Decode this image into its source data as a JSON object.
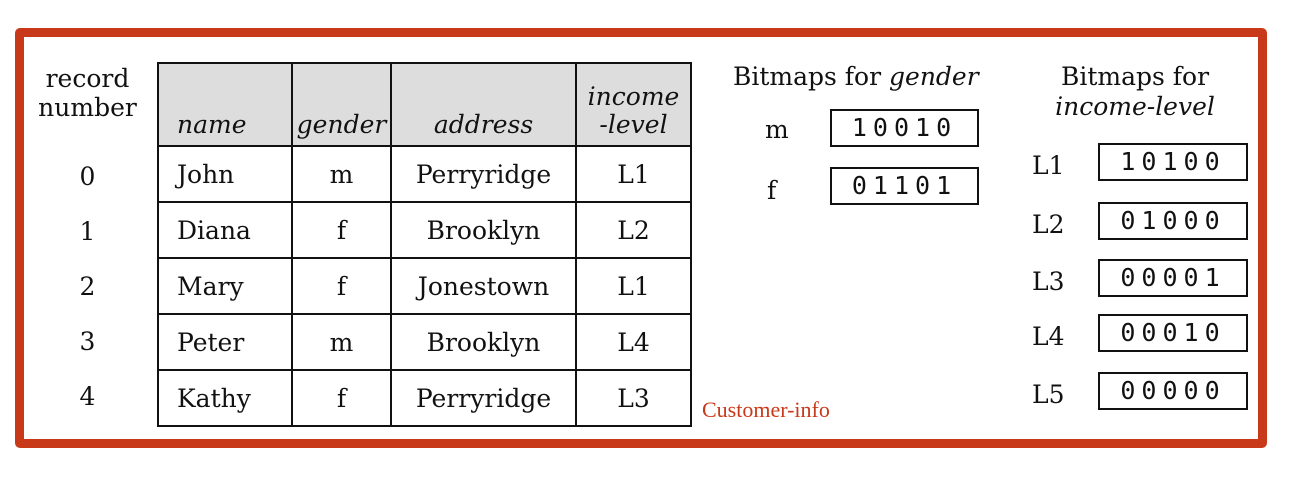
{
  "record_number_header": [
    "record",
    "number"
  ],
  "table": {
    "headers": {
      "name": "name",
      "gender": "gender",
      "address": "address",
      "income_level": [
        "income",
        "-level"
      ]
    },
    "rows": [
      {
        "num": "0",
        "name": "John",
        "gender": "m",
        "address": "Perryridge",
        "income": "L1"
      },
      {
        "num": "1",
        "name": "Diana",
        "gender": "f",
        "address": "Brooklyn",
        "income": "L2"
      },
      {
        "num": "2",
        "name": "Mary",
        "gender": "f",
        "address": "Jonestown",
        "income": "L1"
      },
      {
        "num": "3",
        "name": "Peter",
        "gender": "m",
        "address": "Brooklyn",
        "income": "L4"
      },
      {
        "num": "4",
        "name": "Kathy",
        "gender": "f",
        "address": "Perryridge",
        "income": "L3"
      }
    ]
  },
  "table_label": "Customer-info",
  "gender_bitmaps": {
    "title_plain": "Bitmaps for ",
    "title_italic": "gender",
    "items": [
      {
        "key": "m",
        "bits": "10010"
      },
      {
        "key": "f",
        "bits": "01101"
      }
    ]
  },
  "income_bitmaps": {
    "title_line1": "Bitmaps for",
    "title_line2": "income-level",
    "items": [
      {
        "key": "L1",
        "bits": "10100"
      },
      {
        "key": "L2",
        "bits": "01000"
      },
      {
        "key": "L3",
        "bits": "00001"
      },
      {
        "key": "L4",
        "bits": "00010"
      },
      {
        "key": "L5",
        "bits": "00000"
      }
    ]
  },
  "colors": {
    "frame": "#c8391a",
    "header_bg": "#dddddd",
    "label": "#c8391a"
  }
}
